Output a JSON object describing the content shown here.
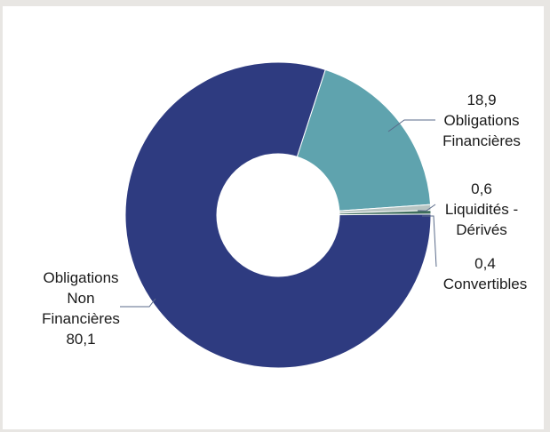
{
  "chart_data": {
    "type": "pie",
    "donut": true,
    "categories": [
      "Obligations Financières",
      "Liquidités - Dérivés",
      "Convertibles",
      "Obligations Non Financières"
    ],
    "values": [
      18.9,
      0.6,
      0.4,
      80.1
    ],
    "value_labels": [
      "18,9",
      "0,6",
      "0,4",
      "80,1"
    ],
    "label_lines": [
      [
        "Obligations",
        "Financières"
      ],
      [
        "Liquidités -",
        "Dérivés"
      ],
      [
        "Convertibles"
      ],
      [
        "Obligations",
        "Non",
        "Financières"
      ]
    ],
    "colors": [
      "#5fa3ae",
      "#b7c4c2",
      "#3e6d5c",
      "#2e3b80"
    ],
    "legend": "none"
  }
}
